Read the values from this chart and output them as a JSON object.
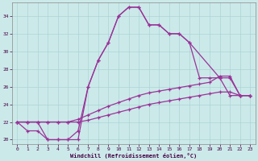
{
  "bg_color": "#cce9e9",
  "line_color": "#993399",
  "grid_color": "#aad4d4",
  "xlabel": "Windchill (Refroidissement éolien,°C)",
  "xlim": [
    -0.5,
    23.5
  ],
  "ylim": [
    19.5,
    35.5
  ],
  "yticks": [
    20,
    22,
    24,
    26,
    28,
    30,
    32,
    34
  ],
  "xticks": [
    0,
    1,
    2,
    3,
    4,
    5,
    6,
    7,
    8,
    9,
    10,
    11,
    12,
    13,
    14,
    15,
    16,
    17,
    18,
    19,
    20,
    21,
    22,
    23
  ],
  "line1_x": [
    0,
    1,
    2,
    3,
    4,
    5,
    6,
    7,
    8,
    9,
    10,
    11,
    12,
    13,
    14,
    15,
    16,
    17,
    20,
    21,
    22,
    23
  ],
  "line1_y": [
    22,
    22,
    22,
    20,
    20,
    20,
    20,
    26,
    29,
    31,
    34,
    35,
    35,
    33,
    33,
    32,
    32,
    31,
    27,
    27,
    25,
    25
  ],
  "line2_x": [
    0,
    1,
    2,
    3,
    4,
    5,
    6,
    7,
    8,
    9,
    10,
    11,
    12,
    13,
    14,
    15,
    16,
    17,
    18,
    19,
    20,
    21,
    22,
    23
  ],
  "line2_y": [
    22,
    21,
    21,
    20,
    20,
    20,
    21,
    26,
    29,
    31,
    34,
    35,
    35,
    33,
    33,
    32,
    32,
    31,
    27,
    27,
    27,
    25,
    25,
    25
  ],
  "line3_x": [
    0,
    1,
    2,
    3,
    4,
    5,
    6,
    7,
    8,
    9,
    10,
    11,
    12,
    13,
    14,
    15,
    16,
    17,
    18,
    19,
    20,
    21,
    22,
    23
  ],
  "line3_y": [
    22,
    22,
    22,
    22,
    22,
    22,
    22.3,
    22.8,
    23.3,
    23.8,
    24.2,
    24.6,
    25.0,
    25.3,
    25.5,
    25.7,
    25.9,
    26.1,
    26.3,
    26.5,
    27.2,
    27.2,
    25.0,
    25.0
  ],
  "line4_x": [
    0,
    1,
    2,
    3,
    4,
    5,
    6,
    7,
    8,
    9,
    10,
    11,
    12,
    13,
    14,
    15,
    16,
    17,
    18,
    19,
    20,
    21,
    22,
    23
  ],
  "line4_y": [
    22,
    22,
    22,
    22,
    22,
    22,
    22,
    22.2,
    22.5,
    22.8,
    23.1,
    23.4,
    23.7,
    24.0,
    24.2,
    24.4,
    24.6,
    24.8,
    25.0,
    25.2,
    25.4,
    25.4,
    25.0,
    25.0
  ]
}
